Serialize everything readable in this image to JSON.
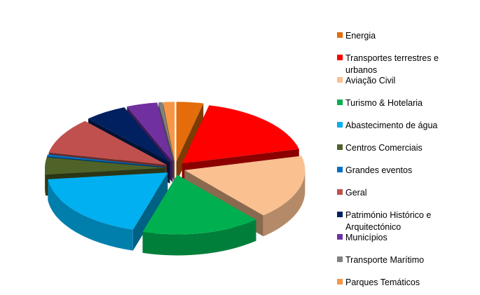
{
  "chart_data": {
    "type": "pie",
    "style": "3d-exploded",
    "title": "",
    "legend_position": "right",
    "categories": [
      "Energia",
      "Transportes terrestres e urbanos",
      "Aviação Civil",
      "Turismo & Hotelaria",
      "Abastecimento de água",
      "Centros Comerciais",
      "Grandes eventos",
      "Geral",
      "Património Histórico e Arquitectónico",
      "Municípios",
      "Transporte Marítimo",
      "Parques Temáticos"
    ],
    "legend_lines": [
      [
        "Energia"
      ],
      [
        "Transportes terrestres e",
        "urbanos"
      ],
      [
        "Aviação Civil"
      ],
      [
        "Turismo & Hotelaria"
      ],
      [
        "Abastecimento de água"
      ],
      [
        "Centros Comerciais"
      ],
      [
        "Grandes eventos"
      ],
      [
        "Geral"
      ],
      [
        "Património Histórico e",
        "Arquitectónico"
      ],
      [
        "Municípios"
      ],
      [
        "Transporte Marítimo"
      ],
      [
        "Parques Temáticos"
      ]
    ],
    "values": [
      3.5,
      17,
      17,
      15.5,
      18,
      4.5,
      0.5,
      9.5,
      5.5,
      4,
      0.5,
      1.5
    ],
    "colors": [
      "#E46C0A",
      "#FF0000",
      "#FAC090",
      "#00B050",
      "#00B0F0",
      "#4F6228",
      "#0070C0",
      "#C0504D",
      "#002060",
      "#7030A0",
      "#808080",
      "#F79646"
    ]
  }
}
